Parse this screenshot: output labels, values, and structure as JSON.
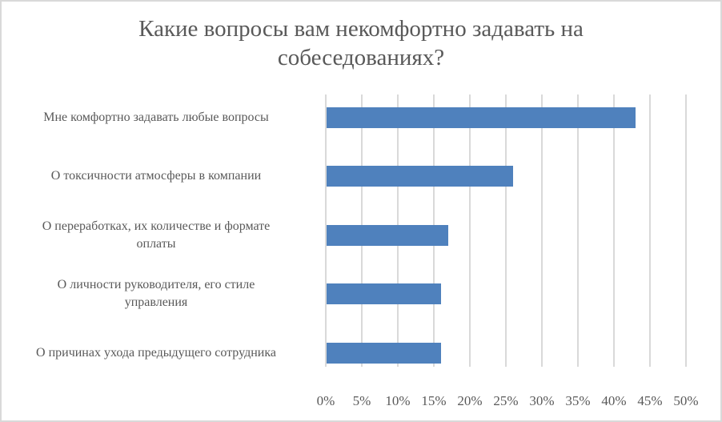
{
  "chart_data": {
    "type": "bar",
    "orientation": "horizontal",
    "title": "Какие вопросы вам некомфортно задавать на собеседованиях?",
    "title_lines": [
      "Какие вопросы вам некомфортно задавать на",
      "собеседованиях?"
    ],
    "categories": [
      "Мне комфортно задавать любые вопросы",
      "О токсичности атмосферы в компании",
      "О переработках, их количестве и формате оплаты",
      "О личности руководителя, его стиле управления",
      "О причинах ухода предыдущего сотрудника"
    ],
    "category_labels": [
      "Мне комфортно задавать любые вопросы",
      "О токсичности атмосферы в компании",
      "О переработках, их количестве и формате\nоплаты",
      "О личности руководителя, его стиле\nуправления",
      "О причинах ухода предыдущего сотрудника"
    ],
    "values": [
      43,
      26,
      17,
      16,
      16
    ],
    "unit": "%",
    "xlabel": "",
    "ylabel": "",
    "xlim": [
      0,
      50
    ],
    "x_ticks": [
      "0%",
      "5%",
      "10%",
      "15%",
      "20%",
      "25%",
      "30%",
      "35%",
      "40%",
      "45%",
      "50%"
    ],
    "grid": true,
    "legend": null,
    "bar_color": "#4f81bd"
  }
}
